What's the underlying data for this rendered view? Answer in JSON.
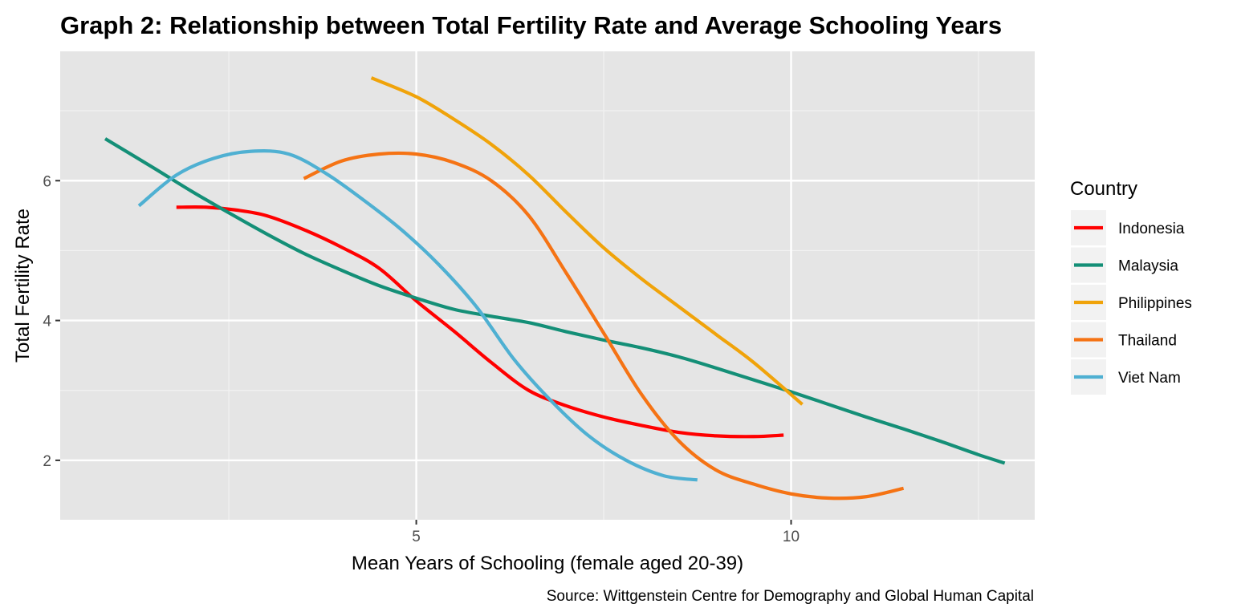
{
  "chart_data": {
    "type": "line",
    "title": "Graph 2: Relationship between Total Fertility Rate and Average Schooling Years",
    "xlabel": "Mean Years of Schooling (female aged 20-39)",
    "ylabel": "Total Fertility Rate",
    "caption": "Source: Wittgenstein Centre for Demography and Global Human Capital",
    "xlim": [
      0.25,
      13.25
    ],
    "ylim": [
      1.15,
      7.85
    ],
    "x_ticks": [
      5,
      10
    ],
    "x_tick_labels": [
      "5",
      "10"
    ],
    "x_minor_ticks": [
      2.5,
      7.5,
      12.5
    ],
    "y_ticks": [
      2,
      4,
      6
    ],
    "y_tick_labels": [
      "2",
      "4",
      "6"
    ],
    "y_minor_ticks": [
      3,
      5,
      7
    ],
    "grid": true,
    "legend": {
      "title": "Country",
      "position": "right"
    },
    "series": [
      {
        "name": "Indonesia",
        "color": "#ff0000",
        "x": [
          1.8,
          2.2,
          2.6,
          3.0,
          3.5,
          4.0,
          4.5,
          5.0,
          5.5,
          6.0,
          6.5,
          7.0,
          7.5,
          8.0,
          8.5,
          9.0,
          9.5,
          9.9
        ],
        "y": [
          5.62,
          5.62,
          5.58,
          5.5,
          5.3,
          5.05,
          4.75,
          4.28,
          3.85,
          3.4,
          3.0,
          2.78,
          2.62,
          2.5,
          2.4,
          2.35,
          2.34,
          2.36
        ]
      },
      {
        "name": "Malaysia",
        "color": "#148f77",
        "x": [
          0.85,
          1.5,
          2.0,
          2.5,
          3.0,
          3.5,
          4.0,
          4.5,
          5.0,
          5.5,
          6.0,
          6.5,
          7.0,
          7.5,
          8.0,
          8.5,
          9.0,
          9.5,
          10.0,
          10.5,
          11.0,
          11.5,
          12.0,
          12.5,
          12.85
        ],
        "y": [
          6.6,
          6.18,
          5.85,
          5.54,
          5.24,
          4.96,
          4.72,
          4.5,
          4.32,
          4.16,
          4.06,
          3.97,
          3.84,
          3.72,
          3.61,
          3.48,
          3.32,
          3.15,
          2.98,
          2.8,
          2.62,
          2.45,
          2.27,
          2.08,
          1.96
        ]
      },
      {
        "name": "Philippines",
        "color": "#f0a30a",
        "x": [
          4.4,
          5.0,
          5.5,
          6.0,
          6.5,
          7.0,
          7.5,
          8.0,
          8.5,
          9.0,
          9.5,
          10.15
        ],
        "y": [
          7.47,
          7.2,
          6.88,
          6.52,
          6.08,
          5.55,
          5.04,
          4.6,
          4.2,
          3.8,
          3.4,
          2.8
        ]
      },
      {
        "name": "Thailand",
        "color": "#f57314",
        "x": [
          3.5,
          4.0,
          4.5,
          5.0,
          5.5,
          6.0,
          6.5,
          7.0,
          7.5,
          8.0,
          8.5,
          9.0,
          9.5,
          10.0,
          10.5,
          11.0,
          11.5
        ],
        "y": [
          6.03,
          6.28,
          6.38,
          6.38,
          6.26,
          6.0,
          5.5,
          4.68,
          3.82,
          2.95,
          2.28,
          1.86,
          1.66,
          1.52,
          1.46,
          1.48,
          1.6
        ]
      },
      {
        "name": "Viet Nam",
        "color": "#4fb0d2",
        "x": [
          1.3,
          1.8,
          2.3,
          2.8,
          3.3,
          3.8,
          4.3,
          4.8,
          5.3,
          5.8,
          6.3,
          6.8,
          7.3,
          7.8,
          8.3,
          8.75
        ],
        "y": [
          5.64,
          6.08,
          6.32,
          6.42,
          6.38,
          6.1,
          5.72,
          5.3,
          4.8,
          4.2,
          3.45,
          2.85,
          2.35,
          2.0,
          1.78,
          1.72
        ]
      }
    ]
  }
}
